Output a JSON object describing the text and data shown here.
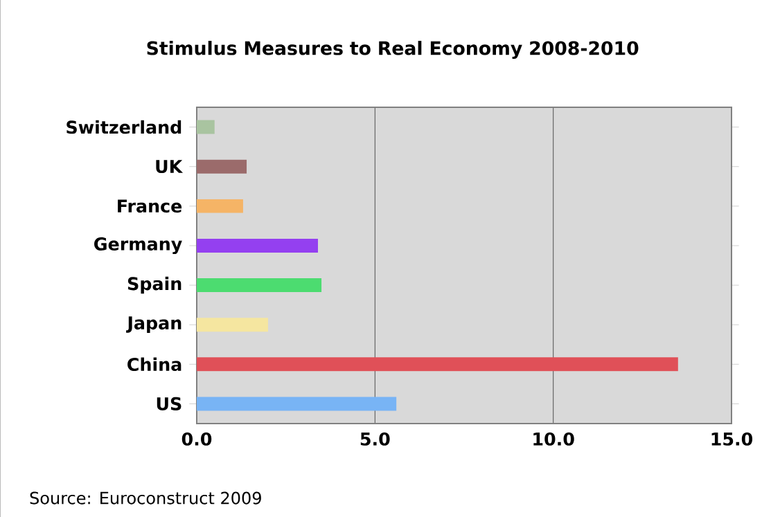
{
  "chart_data": {
    "type": "bar",
    "orientation": "horizontal",
    "title": "Stimulus Measures to Real Economy 2008-2010",
    "categories": [
      "Switzerland",
      "UK",
      "France",
      "Germany",
      "Spain",
      "Japan",
      "China",
      "US"
    ],
    "values": [
      0.5,
      1.4,
      1.3,
      3.4,
      3.5,
      2.0,
      13.5,
      5.6
    ],
    "colors": [
      "#a9c4a0",
      "#9b6b6b",
      "#f5b466",
      "#9440f0",
      "#4cdc70",
      "#f5e6a0",
      "#e05058",
      "#78b4f5"
    ],
    "xlim": [
      0,
      15
    ],
    "xticks": [
      {
        "value": 0,
        "label": "0.0"
      },
      {
        "value": 5,
        "label": "5.0"
      },
      {
        "value": 10,
        "label": "10.0"
      },
      {
        "value": 15,
        "label": "15.0"
      }
    ],
    "grid": "x",
    "annotations": [
      "Source: Euroconstruct 2009"
    ]
  }
}
